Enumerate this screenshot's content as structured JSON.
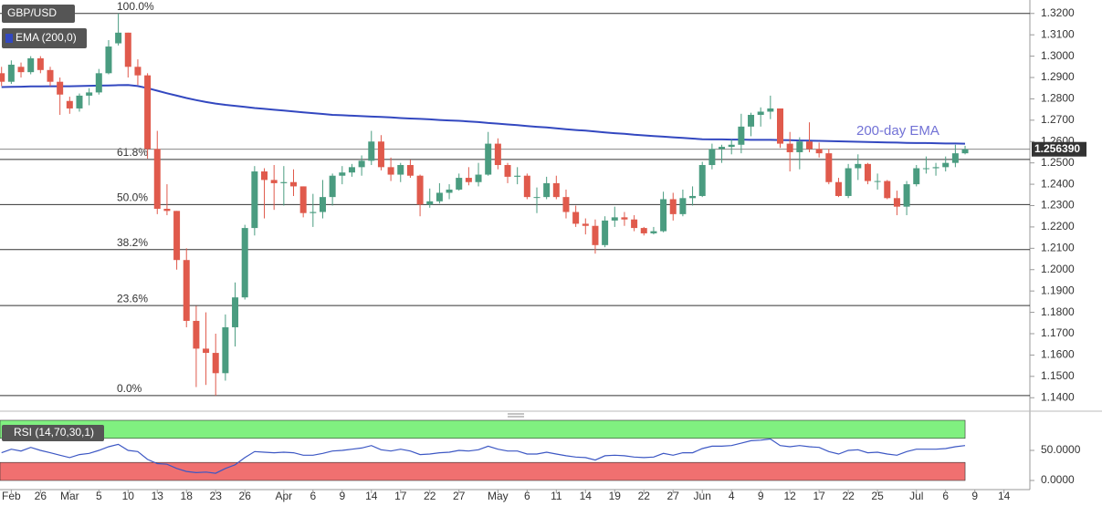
{
  "chart_data": [
    {
      "type": "candlestick",
      "title": "GBP/USD",
      "annotation": "200-day EMA",
      "up_color": "#4a9c80",
      "down_color": "#e05a4c",
      "categories": [
        null,
        "Feb",
        null,
        null,
        "26",
        null,
        null,
        "Mar",
        null,
        null,
        "5",
        null,
        null,
        "10",
        null,
        null,
        "13",
        null,
        null,
        "18",
        null,
        null,
        "23",
        null,
        null,
        "26",
        null,
        null,
        null,
        "Apr",
        null,
        null,
        "6",
        null,
        null,
        "9",
        null,
        null,
        "14",
        null,
        null,
        "17",
        null,
        null,
        "22",
        null,
        null,
        "27",
        null,
        null,
        null,
        "May",
        null,
        null,
        "6",
        null,
        null,
        "11",
        null,
        null,
        "14",
        null,
        null,
        "19",
        null,
        null,
        "22",
        null,
        null,
        "27",
        null,
        null,
        "Jun",
        null,
        null,
        "4",
        null,
        null,
        "9",
        null,
        null,
        "12",
        null,
        null,
        "17",
        null,
        null,
        "22",
        null,
        null,
        "25",
        null,
        null,
        null,
        "Jul",
        null,
        null,
        "6",
        null,
        null,
        "9",
        null,
        null,
        "14"
      ],
      "open": [
        1.292,
        1.288,
        1.295,
        1.2925,
        1.299,
        1.2935,
        1.288,
        1.279,
        1.2755,
        1.2815,
        1.283,
        1.292,
        1.306,
        1.311,
        1.295,
        1.291,
        1.2565,
        1.2285,
        1.2275,
        1.2045,
        1.176,
        1.163,
        1.161,
        1.1515,
        1.173,
        1.187,
        1.2195,
        1.246,
        1.242,
        1.2405,
        1.241,
        1.239,
        1.2265,
        1.227,
        1.234,
        1.244,
        1.2455,
        1.248,
        1.251,
        1.26,
        1.248,
        1.2445,
        1.249,
        1.244,
        1.2305,
        1.232,
        1.236,
        1.2375,
        1.243,
        1.241,
        1.2445,
        1.259,
        1.249,
        1.2435,
        1.244,
        1.234,
        1.234,
        1.2405,
        1.234,
        1.227,
        1.2215,
        1.2205,
        1.2115,
        1.223,
        1.2245,
        1.2235,
        1.2195,
        1.217,
        1.218,
        1.233,
        1.226,
        1.2335,
        1.2345,
        1.249,
        1.2565,
        1.2575,
        1.2585,
        1.267,
        1.2725,
        1.274,
        1.2755,
        1.259,
        1.255,
        1.26,
        1.2565,
        1.2545,
        1.241,
        1.2345,
        1.2475,
        1.2495,
        1.2415,
        1.2415,
        1.2335,
        1.2295,
        1.24,
        1.2475,
        1.2475,
        1.248,
        1.25,
        1.2545,
        null,
        null,
        null,
        null
      ],
      "high": [
        1.295,
        1.298,
        1.297,
        1.3,
        1.3,
        1.295,
        1.29,
        1.281,
        1.2825,
        1.285,
        1.294,
        1.3075,
        1.32,
        1.311,
        1.2985,
        1.292,
        1.265,
        1.24,
        1.2275,
        1.21,
        1.183,
        1.18,
        1.17,
        1.179,
        1.194,
        1.221,
        1.2485,
        1.2475,
        1.249,
        1.2485,
        1.247,
        1.239,
        1.2355,
        1.242,
        1.245,
        1.2485,
        1.2495,
        1.2535,
        1.265,
        1.263,
        1.2525,
        1.25,
        1.2515,
        1.2445,
        1.238,
        1.2405,
        1.24,
        1.245,
        1.248,
        1.25,
        1.2645,
        1.2615,
        1.25,
        1.248,
        1.245,
        1.2385,
        1.2435,
        1.244,
        1.2375,
        1.23,
        1.224,
        1.2235,
        1.225,
        1.2295,
        1.227,
        1.2255,
        1.22,
        1.22,
        1.2365,
        1.236,
        1.2375,
        1.239,
        1.2505,
        1.259,
        1.2585,
        1.261,
        1.273,
        1.2735,
        1.276,
        1.2815,
        1.2755,
        1.2645,
        1.262,
        1.269,
        1.2595,
        1.2565,
        1.243,
        1.2495,
        1.254,
        1.25,
        1.245,
        1.242,
        1.237,
        1.2415,
        1.249,
        1.253,
        1.25,
        1.253,
        1.2585,
        1.258,
        null,
        null,
        null,
        null
      ],
      "low": [
        1.286,
        1.287,
        1.29,
        1.2915,
        1.292,
        1.286,
        1.2725,
        1.273,
        1.274,
        1.277,
        1.282,
        1.2915,
        1.305,
        1.29,
        1.2865,
        1.252,
        1.226,
        1.2255,
        1.2,
        1.173,
        1.145,
        1.146,
        1.141,
        1.148,
        1.164,
        1.186,
        1.216,
        1.224,
        1.228,
        1.23,
        1.2345,
        1.2245,
        1.22,
        1.224,
        1.23,
        1.24,
        1.2435,
        1.244,
        1.249,
        1.2465,
        1.2415,
        1.241,
        1.243,
        1.225,
        1.229,
        1.231,
        1.233,
        1.237,
        1.2395,
        1.239,
        1.244,
        1.247,
        1.2405,
        1.24,
        1.233,
        1.2265,
        1.233,
        1.233,
        1.224,
        1.22,
        1.2165,
        1.2075,
        1.2105,
        1.22,
        1.2205,
        1.218,
        1.216,
        1.2165,
        1.2175,
        1.223,
        1.225,
        1.23,
        1.234,
        1.247,
        1.25,
        1.254,
        1.2545,
        1.2625,
        1.267,
        1.2705,
        1.257,
        1.246,
        1.247,
        1.255,
        1.2525,
        1.24,
        1.234,
        1.2335,
        1.242,
        1.24,
        1.2375,
        1.233,
        1.2255,
        1.2255,
        1.239,
        1.245,
        1.244,
        1.246,
        1.248,
        1.254,
        null,
        null,
        null,
        null
      ],
      "close": [
        1.288,
        1.296,
        1.2925,
        1.299,
        1.2935,
        1.288,
        1.282,
        1.2755,
        1.2815,
        1.283,
        1.292,
        1.3045,
        1.311,
        1.295,
        1.291,
        1.2565,
        1.2285,
        1.2275,
        1.2045,
        1.176,
        1.163,
        1.161,
        1.1515,
        1.173,
        1.187,
        1.2195,
        1.246,
        1.242,
        1.2405,
        1.241,
        1.239,
        1.2265,
        1.227,
        1.234,
        1.244,
        1.2455,
        1.248,
        1.251,
        1.26,
        1.248,
        1.2445,
        1.249,
        1.244,
        1.2305,
        1.232,
        1.236,
        1.2375,
        1.243,
        1.241,
        1.2445,
        1.259,
        1.249,
        1.2435,
        1.244,
        1.234,
        1.234,
        1.2405,
        1.234,
        1.227,
        1.2215,
        1.2205,
        1.2115,
        1.223,
        1.2245,
        1.2235,
        1.2195,
        1.217,
        1.218,
        1.233,
        1.226,
        1.2335,
        1.2345,
        1.249,
        1.2565,
        1.2575,
        1.2585,
        1.267,
        1.2725,
        1.274,
        1.2755,
        1.259,
        1.255,
        1.26,
        1.2565,
        1.2545,
        1.241,
        1.2345,
        1.2475,
        1.2495,
        1.2415,
        1.2415,
        1.2335,
        1.2295,
        1.24,
        1.2475,
        1.2475,
        1.248,
        1.25,
        1.2545,
        1.25639,
        null,
        null,
        null,
        null
      ],
      "series": [
        {
          "name": "EMA (200,0)",
          "color": "#3348c0",
          "values": [
            1.2855,
            1.2856,
            1.2857,
            1.2858,
            1.2858,
            1.2859,
            1.2859,
            1.2859,
            1.286,
            1.2861,
            1.2862,
            1.2863,
            1.2864,
            1.2865,
            1.286,
            1.285,
            1.2838,
            1.2826,
            1.2815,
            1.2804,
            1.2794,
            1.2785,
            1.2778,
            1.2772,
            1.2767,
            1.2762,
            1.2757,
            1.2753,
            1.2749,
            1.2745,
            1.2741,
            1.2737,
            1.2733,
            1.2729,
            1.2725,
            1.2723,
            1.2721,
            1.2719,
            1.2717,
            1.2715,
            1.2713,
            1.271,
            1.2708,
            1.2706,
            1.2704,
            1.2701,
            1.2699,
            1.2697,
            1.2694,
            1.2691,
            1.2687,
            1.2684,
            1.268,
            1.2677,
            1.2673,
            1.2669,
            1.2666,
            1.2662,
            1.2658,
            1.2654,
            1.2651,
            1.2647,
            1.2643,
            1.2639,
            1.2636,
            1.2632,
            1.2629,
            1.2626,
            1.2623,
            1.262,
            1.2617,
            1.2614,
            1.2611,
            1.261,
            1.261,
            1.2609,
            1.2609,
            1.2608,
            1.2608,
            1.2608,
            1.2607,
            1.2606,
            1.2605,
            1.2604,
            1.2603,
            1.2602,
            1.2601,
            1.26,
            1.2599,
            1.2598,
            1.2597,
            1.2596,
            1.2595,
            1.2594,
            1.2593,
            1.2593,
            1.2592,
            1.2591,
            1.2591,
            1.259,
            null,
            null,
            null,
            null
          ]
        }
      ],
      "fib_levels": [
        {
          "label": "100.0%",
          "value": 1.32
        },
        {
          "label": "61.8%",
          "value": 1.2516
        },
        {
          "label": "50.0%",
          "value": 1.2305
        },
        {
          "label": "38.2%",
          "value": 1.2094
        },
        {
          "label": "23.6%",
          "value": 1.1832
        },
        {
          "label": "0.0%",
          "value": 1.141
        }
      ],
      "last_price": {
        "value": 1.25639,
        "label": "1.256390"
      },
      "ylim": [
        1.1337,
        1.3263
      ],
      "yticks": [
        {
          "value": 1.32,
          "label": "1.3200"
        },
        {
          "value": 1.31,
          "label": "1.3100"
        },
        {
          "value": 1.3,
          "label": "1.3000"
        },
        {
          "value": 1.29,
          "label": "1.2900"
        },
        {
          "value": 1.28,
          "label": "1.2800"
        },
        {
          "value": 1.27,
          "label": "1.2700"
        },
        {
          "value": 1.26,
          "label": "1.2600"
        },
        {
          "value": 1.25,
          "label": "1.2500"
        },
        {
          "value": 1.24,
          "label": "1.2400"
        },
        {
          "value": 1.23,
          "label": "1.2300"
        },
        {
          "value": 1.22,
          "label": "1.2200"
        },
        {
          "value": 1.21,
          "label": "1.2100"
        },
        {
          "value": 1.2,
          "label": "1.2000"
        },
        {
          "value": 1.19,
          "label": "1.1900"
        },
        {
          "value": 1.18,
          "label": "1.1800"
        },
        {
          "value": 1.17,
          "label": "1.1700"
        },
        {
          "value": 1.16,
          "label": "1.1600"
        },
        {
          "value": 1.15,
          "label": "1.1500"
        },
        {
          "value": 1.14,
          "label": "1.1400"
        }
      ]
    },
    {
      "type": "line",
      "title": "RSI (14,70,30,1)",
      "color": "#3c57c4",
      "overbought": 70,
      "oversold": 30,
      "overbought_color": "#80f080",
      "oversold_color": "#f07070",
      "values": [
        46,
        52,
        49,
        55,
        50,
        46,
        42,
        38,
        43,
        45,
        50,
        56,
        60,
        50,
        48,
        35,
        28,
        27,
        20,
        15,
        13,
        14,
        12,
        20,
        26,
        38,
        48,
        47,
        46,
        47,
        46,
        42,
        42,
        45,
        49,
        50,
        52,
        54,
        58,
        51,
        49,
        52,
        49,
        43,
        44,
        46,
        47,
        50,
        49,
        51,
        57,
        52,
        49,
        49,
        44,
        44,
        47,
        44,
        41,
        39,
        38,
        34,
        41,
        42,
        41,
        39,
        38,
        39,
        45,
        42,
        46,
        46,
        53,
        57,
        57,
        58,
        62,
        66,
        67,
        69,
        58,
        56,
        58,
        56,
        55,
        48,
        44,
        50,
        51,
        46,
        47,
        44,
        42,
        48,
        52,
        52,
        52,
        53,
        56,
        58,
        null,
        null,
        null,
        null
      ],
      "ylim": [
        0,
        100
      ],
      "yticks": [
        {
          "value": 50,
          "label": "50.0000"
        },
        {
          "value": 0,
          "label": "0.0000"
        }
      ]
    }
  ]
}
